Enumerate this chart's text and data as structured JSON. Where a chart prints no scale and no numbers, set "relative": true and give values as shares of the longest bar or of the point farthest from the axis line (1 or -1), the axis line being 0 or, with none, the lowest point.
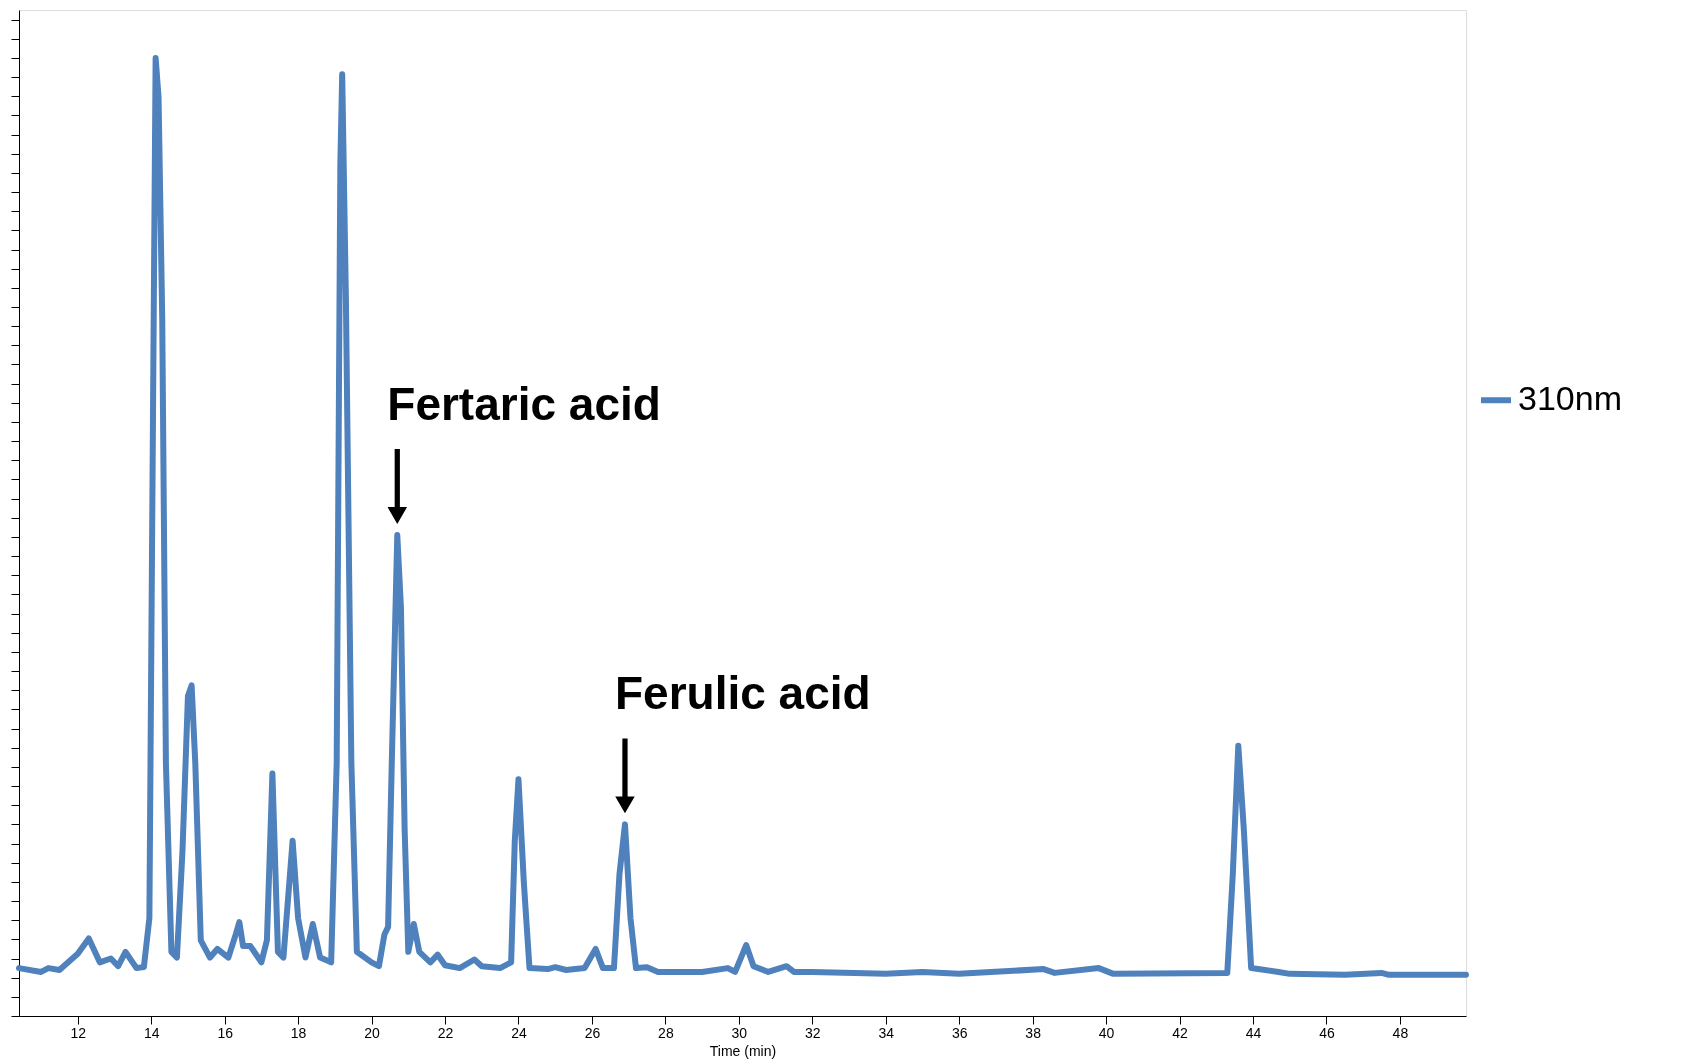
{
  "chart_data": {
    "type": "line",
    "relative": true,
    "xlabel": "Time (min)",
    "xlim": [
      10.4,
      49.8
    ],
    "xticks": [
      12,
      14,
      16,
      18,
      20,
      22,
      24,
      26,
      28,
      30,
      32,
      34,
      36,
      38,
      40,
      42,
      44,
      46,
      48
    ],
    "tick_labels": "x",
    "grid": false,
    "legend": "right",
    "marker": "none",
    "line_style": "solid",
    "x": [
      10.4,
      11.0,
      11.2,
      11.5,
      12.0,
      12.3,
      12.6,
      12.9,
      13.1,
      13.3,
      13.6,
      13.8,
      13.95,
      14.05,
      14.12,
      14.2,
      14.3,
      14.4,
      14.55,
      14.7,
      14.85,
      15.0,
      15.1,
      15.2,
      15.35,
      15.6,
      15.8,
      16.1,
      16.3,
      16.4,
      16.5,
      16.7,
      17.0,
      17.15,
      17.3,
      17.45,
      17.6,
      17.85,
      18.0,
      18.2,
      18.4,
      18.6,
      18.9,
      19.05,
      19.15,
      19.2,
      19.3,
      19.45,
      19.6,
      20.0,
      20.2,
      20.35,
      20.45,
      20.55,
      20.7,
      20.8,
      20.9,
      21.0,
      21.15,
      21.3,
      21.6,
      21.8,
      22.0,
      22.4,
      22.8,
      23.0,
      23.5,
      23.8,
      23.9,
      24.0,
      24.15,
      24.3,
      24.8,
      25.0,
      25.3,
      25.8,
      26.1,
      26.3,
      26.6,
      26.75,
      26.9,
      27.05,
      27.2,
      27.5,
      27.8,
      29.0,
      29.7,
      29.9,
      30.2,
      30.4,
      30.8,
      31.3,
      31.5,
      32.0,
      34.0,
      35.0,
      36.0,
      38.3,
      38.6,
      39.8,
      40.2,
      43.3,
      43.45,
      43.6,
      43.75,
      43.95,
      44.7,
      45.0,
      46.5,
      47.5,
      47.7,
      49.8
    ],
    "series": [
      {
        "name": "310nm",
        "color": "#4f81bd",
        "values": [
          0.05,
          0.046,
          0.05,
          0.048,
          0.065,
          0.081,
          0.056,
          0.06,
          0.052,
          0.067,
          0.05,
          0.051,
          0.102,
          0.635,
          1.0,
          0.959,
          0.728,
          0.264,
          0.067,
          0.061,
          0.171,
          0.334,
          0.345,
          0.264,
          0.079,
          0.061,
          0.07,
          0.061,
          0.085,
          0.098,
          0.073,
          0.073,
          0.056,
          0.079,
          0.253,
          0.067,
          0.061,
          0.183,
          0.102,
          0.061,
          0.096,
          0.061,
          0.056,
          0.264,
          0.89,
          0.983,
          0.751,
          0.264,
          0.067,
          0.056,
          0.052,
          0.085,
          0.093,
          0.264,
          0.502,
          0.426,
          0.195,
          0.067,
          0.096,
          0.067,
          0.056,
          0.064,
          0.053,
          0.05,
          0.059,
          0.052,
          0.05,
          0.056,
          0.183,
          0.247,
          0.137,
          0.05,
          0.049,
          0.051,
          0.048,
          0.05,
          0.07,
          0.05,
          0.05,
          0.148,
          0.2,
          0.102,
          0.05,
          0.051,
          0.046,
          0.046,
          0.05,
          0.046,
          0.074,
          0.052,
          0.046,
          0.052,
          0.046,
          0.046,
          0.044,
          0.046,
          0.044,
          0.049,
          0.045,
          0.05,
          0.044,
          0.045,
          0.148,
          0.282,
          0.195,
          0.05,
          0.046,
          0.044,
          0.043,
          0.045,
          0.043,
          0.043
        ]
      }
    ],
    "annotations": [
      {
        "text": "Fertaric acid",
        "x": 20.7,
        "y": 0.502
      },
      {
        "text": "Ferulic acid",
        "x": 26.9,
        "y": 0.2
      }
    ]
  }
}
